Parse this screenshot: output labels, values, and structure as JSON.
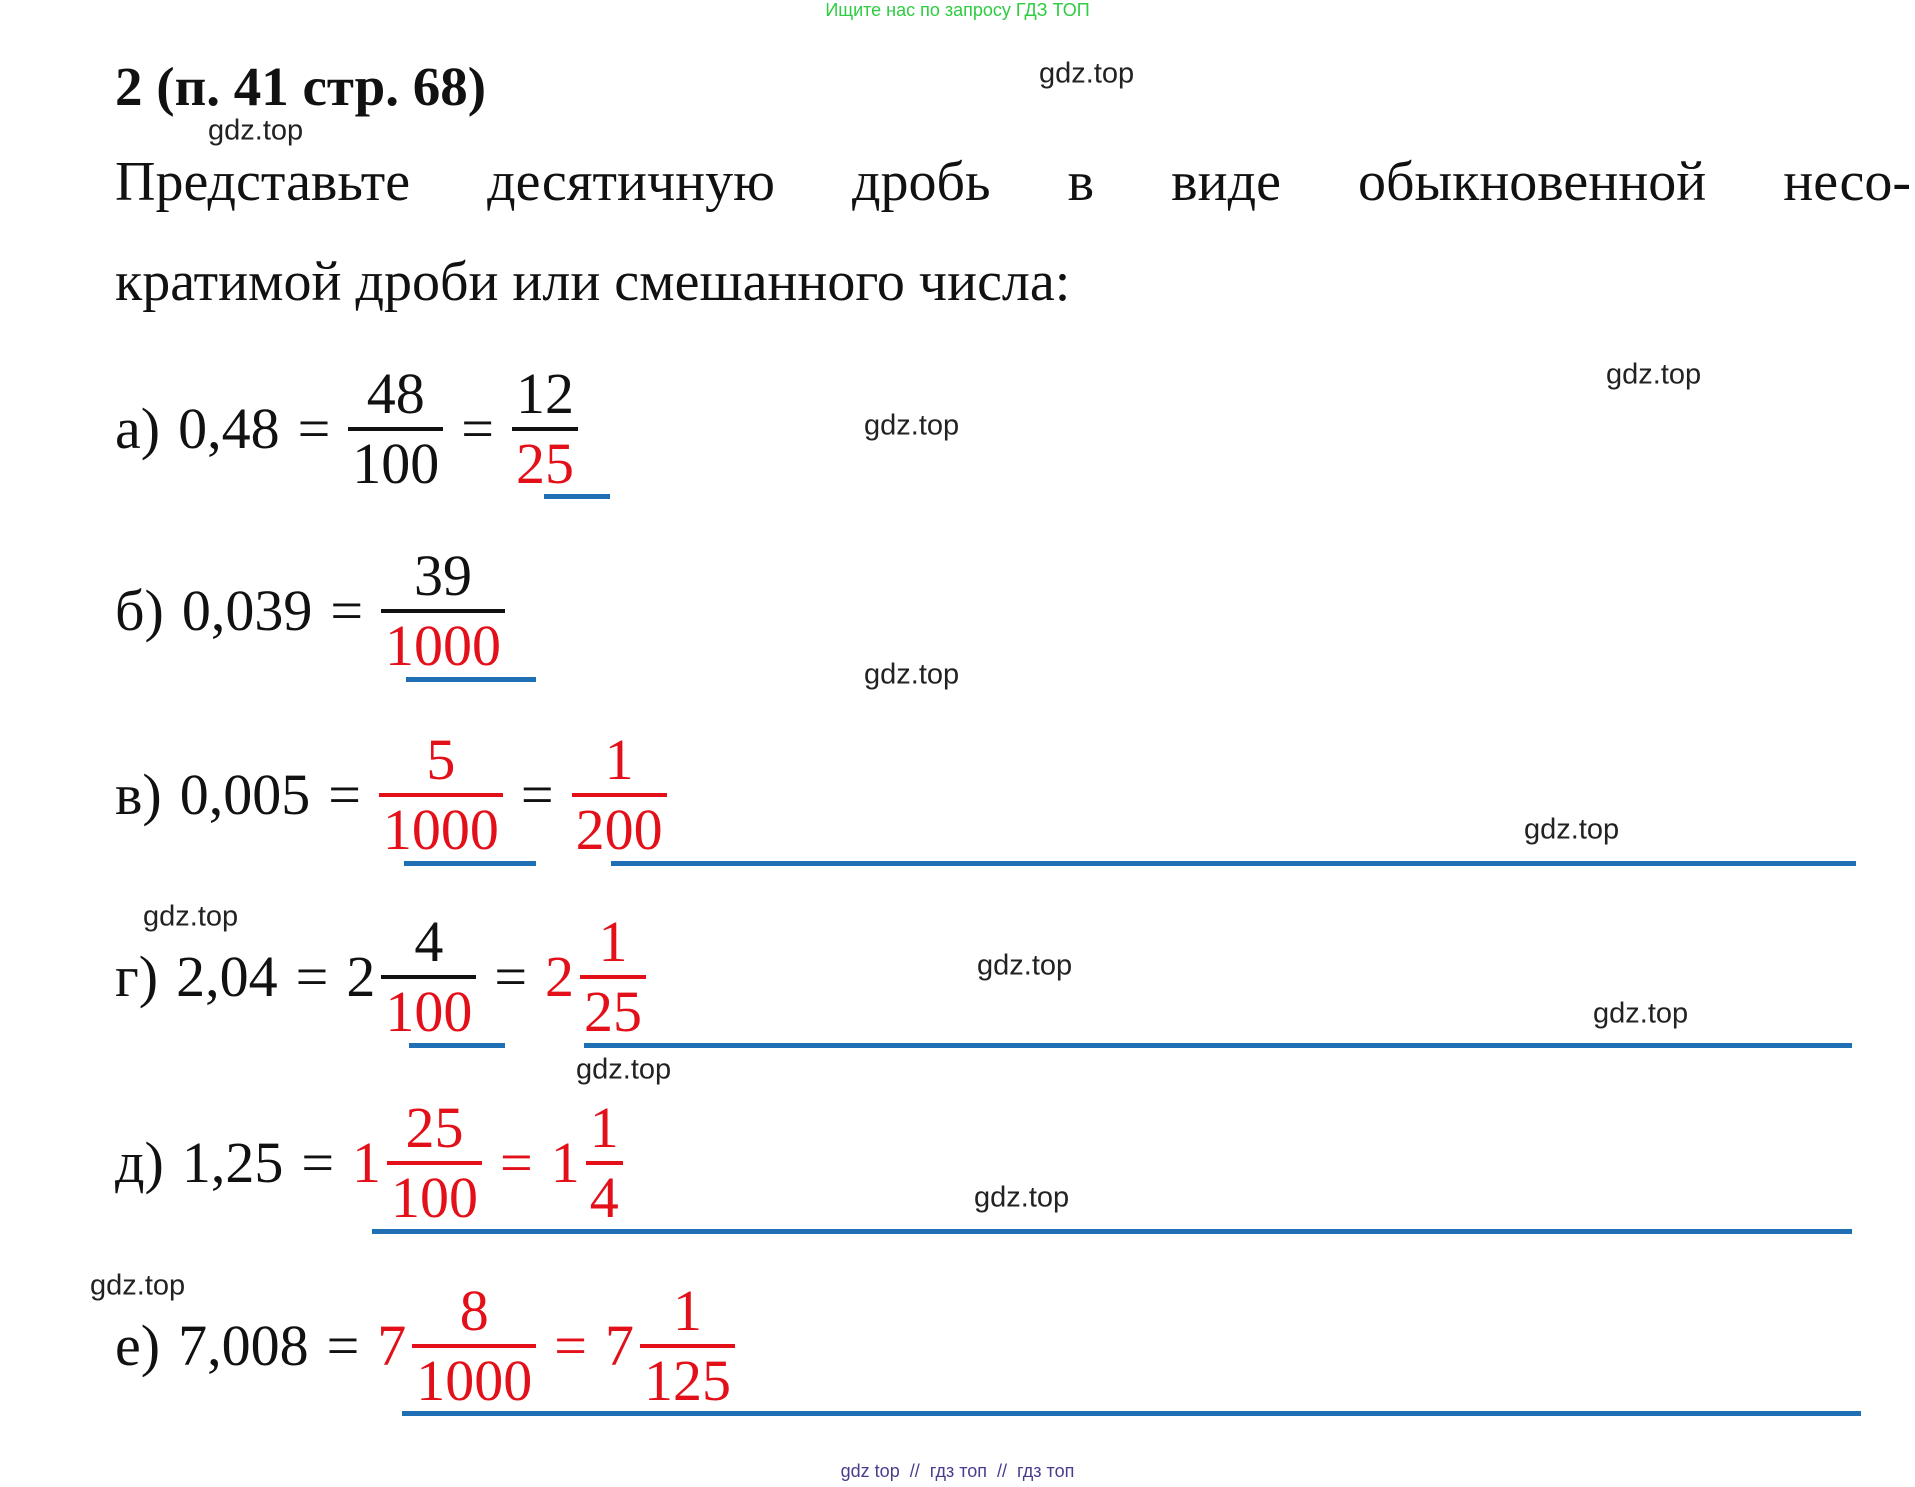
{
  "banner": "Ищите нас по запросу ГДЗ ТОП",
  "title": "2 (п. 41 стр. 68)",
  "task": [
    "Представьте десятичную дробь в виде обыкновенной несо-",
    "кратимой дроби или смешанного числа:"
  ],
  "items": [
    {
      "label": "а)",
      "parts": [
        {
          "text": "0,48"
        },
        {
          "text": "="
        },
        {
          "num": "48",
          "den": "100"
        },
        {
          "text": "="
        },
        {
          "num": "12",
          "den": "25",
          "den_color": "#e3101a"
        }
      ]
    },
    {
      "label": "б)",
      "parts": [
        {
          "text": "0,039"
        },
        {
          "text": "="
        },
        {
          "num": "39",
          "den": "1000",
          "den_color": "#e3101a"
        }
      ]
    },
    {
      "label": "в)",
      "parts": [
        {
          "text": "0,005"
        },
        {
          "text": "="
        },
        {
          "num": "5",
          "den": "1000",
          "color": "#e3101a"
        },
        {
          "text": "="
        },
        {
          "num": "1",
          "den": "200",
          "color": "#e3101a"
        }
      ]
    },
    {
      "label": "г)",
      "parts": [
        {
          "text": "2,04"
        },
        {
          "text": "="
        },
        {
          "whole": "2",
          "num": "4",
          "den": "100",
          "den_color": "#e3101a"
        },
        {
          "text": "="
        },
        {
          "whole": "2",
          "num": "1",
          "den": "25",
          "color": "#e3101a"
        }
      ]
    },
    {
      "label": "д)",
      "parts": [
        {
          "text": "1,25"
        },
        {
          "text": "="
        },
        {
          "whole": "1",
          "num": "25",
          "den": "100",
          "color": "#e3101a"
        },
        {
          "text": "=",
          "color": "#e3101a"
        },
        {
          "whole": "1",
          "num": "1",
          "den": "4",
          "color": "#e3101a"
        }
      ]
    },
    {
      "label": "е)",
      "parts": [
        {
          "text": "7,008"
        },
        {
          "text": "="
        },
        {
          "whole": "7",
          "num": "8",
          "den": "1000",
          "color": "#e3101a"
        },
        {
          "text": "=",
          "color": "#e3101a"
        },
        {
          "whole": "7",
          "num": "1",
          "den": "125",
          "color": "#e3101a"
        }
      ]
    }
  ],
  "watermarks": [
    "gdz.top",
    "gdz.top",
    "gdz.top",
    "gdz.top",
    "gdz.top",
    "gdz.top",
    "gdz.top",
    "gdz.top",
    "gdz.top",
    "gdz.top",
    "gdz.top",
    "gdz.top"
  ],
  "footer": "gdz top  //  гдз топ  //  гдз топ"
}
